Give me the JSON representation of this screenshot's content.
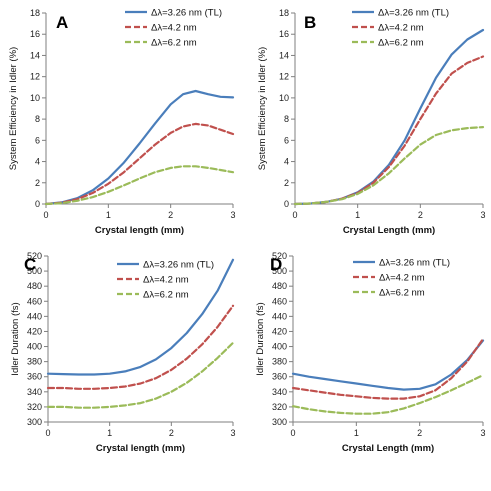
{
  "colors": {
    "s1": "#4a7ebb",
    "s2": "#c0504d",
    "s3": "#9bbb59"
  },
  "chart_data": [
    {
      "type": "line",
      "panel": "A",
      "xlabel": "Crystal length (mm)",
      "ylabel": "System Efficiency in Idler (%)",
      "xlim": [
        0,
        3
      ],
      "ylim": [
        0,
        18
      ],
      "xticks": [
        0,
        1,
        2,
        3
      ],
      "yticks": [
        0,
        2,
        4,
        6,
        8,
        10,
        12,
        14,
        16,
        18
      ],
      "legend_position": "top-right",
      "series": [
        {
          "name": "Δλ=3.26 nm (TL)",
          "color": "#4a7ebb",
          "style": "solid",
          "x": [
            0,
            0.25,
            0.5,
            0.75,
            1.0,
            1.25,
            1.5,
            1.75,
            2.0,
            2.2,
            2.4,
            2.6,
            2.8,
            3.0
          ],
          "y": [
            0,
            0.15,
            0.55,
            1.3,
            2.4,
            3.9,
            5.7,
            7.6,
            9.4,
            10.35,
            10.65,
            10.35,
            10.1,
            10.05
          ]
        },
        {
          "name": "Δλ=4.2 nm",
          "color": "#c0504d",
          "style": "dashed",
          "x": [
            0,
            0.25,
            0.5,
            0.75,
            1.0,
            1.25,
            1.5,
            1.75,
            2.0,
            2.2,
            2.4,
            2.6,
            2.8,
            3.0
          ],
          "y": [
            0,
            0.12,
            0.45,
            1.05,
            1.9,
            3.0,
            4.3,
            5.6,
            6.7,
            7.3,
            7.55,
            7.4,
            7.0,
            6.6
          ]
        },
        {
          "name": "Δλ=6.2 nm",
          "color": "#9bbb59",
          "style": "dashed",
          "x": [
            0,
            0.25,
            0.5,
            0.75,
            1.0,
            1.25,
            1.5,
            1.75,
            2.0,
            2.2,
            2.4,
            2.6,
            2.8,
            3.0
          ],
          "y": [
            0,
            0.08,
            0.3,
            0.65,
            1.15,
            1.75,
            2.4,
            3.0,
            3.4,
            3.55,
            3.55,
            3.4,
            3.2,
            3.0
          ]
        }
      ]
    },
    {
      "type": "line",
      "panel": "B",
      "xlabel": "Crystal Length (mm)",
      "ylabel": "System Efficiency in Idler (%)",
      "xlim": [
        0,
        3
      ],
      "ylim": [
        0,
        18
      ],
      "xticks": [
        0,
        1,
        2,
        3
      ],
      "yticks": [
        0,
        2,
        4,
        6,
        8,
        10,
        12,
        14,
        16,
        18
      ],
      "legend_position": "top-right",
      "series": [
        {
          "name": "Δλ=3.26 nm (TL)",
          "color": "#4a7ebb",
          "style": "solid",
          "x": [
            0,
            0.25,
            0.5,
            0.75,
            1.0,
            1.25,
            1.5,
            1.75,
            2.0,
            2.25,
            2.5,
            2.75,
            3.0
          ],
          "y": [
            0,
            0.05,
            0.2,
            0.5,
            1.1,
            2.1,
            3.7,
            6.0,
            9.0,
            11.9,
            14.1,
            15.5,
            16.4
          ]
        },
        {
          "name": "Δλ=4.2 nm",
          "color": "#c0504d",
          "style": "dashed",
          "x": [
            0,
            0.25,
            0.5,
            0.75,
            1.0,
            1.25,
            1.5,
            1.75,
            2.0,
            2.25,
            2.5,
            2.75,
            3.0
          ],
          "y": [
            0,
            0.05,
            0.2,
            0.5,
            1.05,
            2.0,
            3.5,
            5.5,
            8.0,
            10.4,
            12.3,
            13.3,
            13.9
          ]
        },
        {
          "name": "Δλ=6.2 nm",
          "color": "#9bbb59",
          "style": "dashed",
          "x": [
            0,
            0.25,
            0.5,
            0.75,
            1.0,
            1.25,
            1.5,
            1.75,
            2.0,
            2.25,
            2.5,
            2.75,
            3.0
          ],
          "y": [
            0,
            0.05,
            0.2,
            0.45,
            0.95,
            1.75,
            2.9,
            4.3,
            5.6,
            6.5,
            6.95,
            7.15,
            7.25
          ]
        }
      ]
    },
    {
      "type": "line",
      "panel": "C",
      "xlabel": "Crystal length (mm)",
      "ylabel": "Idler Duration (fs)",
      "xlim": [
        0,
        3
      ],
      "ylim": [
        300,
        520
      ],
      "xticks": [
        0,
        1,
        2,
        3
      ],
      "yticks": [
        300,
        320,
        340,
        360,
        380,
        400,
        420,
        440,
        460,
        480,
        500,
        520
      ],
      "legend_position": "top-left",
      "series": [
        {
          "name": "Δλ=3.26 nm (TL)",
          "color": "#4a7ebb",
          "style": "solid",
          "x": [
            0,
            0.25,
            0.5,
            0.75,
            1.0,
            1.25,
            1.5,
            1.75,
            2.0,
            2.25,
            2.5,
            2.75,
            3.0
          ],
          "y": [
            364,
            363.5,
            363,
            363,
            364,
            367,
            373,
            383,
            398,
            418,
            443,
            474,
            515
          ]
        },
        {
          "name": "Δλ=4.2 nm",
          "color": "#c0504d",
          "style": "dashed",
          "x": [
            0,
            0.25,
            0.5,
            0.75,
            1.0,
            1.25,
            1.5,
            1.75,
            2.0,
            2.25,
            2.5,
            2.75,
            3.0
          ],
          "y": [
            345,
            345,
            344,
            344,
            345,
            347,
            351,
            358,
            369,
            384,
            403,
            426,
            454
          ]
        },
        {
          "name": "Δλ=6.2 nm",
          "color": "#9bbb59",
          "style": "dashed",
          "x": [
            0,
            0.25,
            0.5,
            0.75,
            1.0,
            1.25,
            1.5,
            1.75,
            2.0,
            2.25,
            2.5,
            2.75,
            3.0
          ],
          "y": [
            320,
            320,
            319,
            319,
            320,
            322,
            325,
            331,
            340,
            352,
            367,
            385,
            405
          ]
        }
      ]
    },
    {
      "type": "line",
      "panel": "D",
      "xlabel": "Crystal Length (mm)",
      "ylabel": "Idler Duration (fs)",
      "xlim": [
        0,
        3
      ],
      "ylim": [
        300,
        520
      ],
      "xticks": [
        0,
        1,
        2,
        3
      ],
      "yticks": [
        300,
        320,
        340,
        360,
        380,
        400,
        420,
        440,
        460,
        480,
        500,
        520
      ],
      "legend_position": "top-left",
      "series": [
        {
          "name": "Δλ=3.26 nm (TL)",
          "color": "#4a7ebb",
          "style": "solid",
          "x": [
            0,
            0.25,
            0.5,
            0.75,
            1.0,
            1.25,
            1.5,
            1.75,
            2.0,
            2.25,
            2.5,
            2.75,
            3.0
          ],
          "y": [
            364,
            360,
            357,
            354,
            351,
            348,
            345,
            343,
            344,
            350,
            363,
            382,
            408
          ]
        },
        {
          "name": "Δλ=4.2 nm",
          "color": "#c0504d",
          "style": "dashed",
          "x": [
            0,
            0.25,
            0.5,
            0.75,
            1.0,
            1.25,
            1.5,
            1.75,
            2.0,
            2.25,
            2.5,
            2.75,
            3.0
          ],
          "y": [
            345,
            342,
            339,
            336,
            334,
            332,
            331,
            331,
            334,
            342,
            358,
            380,
            410
          ]
        },
        {
          "name": "Δλ=6.2 nm",
          "color": "#9bbb59",
          "style": "dashed",
          "x": [
            0,
            0.25,
            0.5,
            0.75,
            1.0,
            1.25,
            1.5,
            1.75,
            2.0,
            2.25,
            2.5,
            2.75,
            3.0
          ],
          "y": [
            321,
            317,
            314,
            312,
            311,
            311,
            313,
            318,
            325,
            333,
            342,
            352,
            362
          ]
        }
      ]
    }
  ]
}
